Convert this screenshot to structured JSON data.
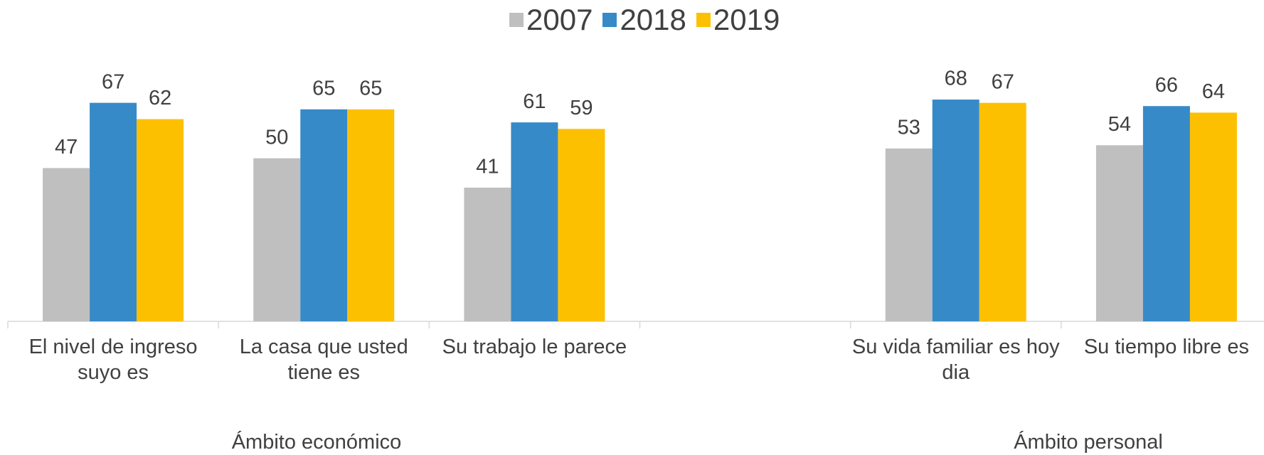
{
  "chart_data": {
    "type": "bar",
    "categories": [
      "El nivel de ingreso suyo es",
      "La casa que usted tiene es",
      "Su trabajo le parece",
      null,
      "Su vida familiar es hoy dia",
      "Su tiempo libre es"
    ],
    "series": [
      {
        "name": "2007",
        "color": "#bfbfbf",
        "values": [
          47,
          50,
          41,
          null,
          53,
          54
        ]
      },
      {
        "name": "2018",
        "color": "#368ac8",
        "values": [
          67,
          65,
          61,
          null,
          68,
          66
        ]
      },
      {
        "name": "2019",
        "color": "#fdc000",
        "values": [
          62,
          65,
          59,
          null,
          67,
          64
        ]
      }
    ],
    "annotations": [
      "Ámbito económico",
      "Ámbito personal"
    ],
    "ylim": [
      0,
      80
    ],
    "legend": "top"
  }
}
